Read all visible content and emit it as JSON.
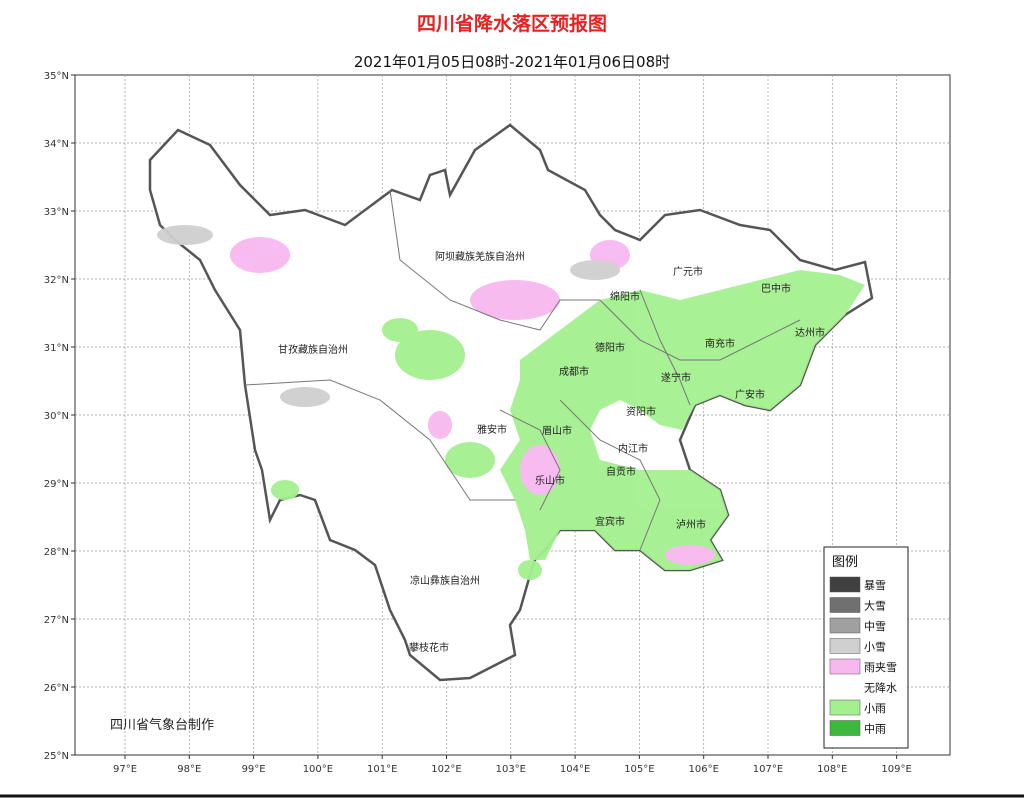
{
  "header": {
    "title": "四川省降水落区预报图",
    "subtitle": "2021年01月05日08时-2021年01月06日08时"
  },
  "axes": {
    "lat_ticks": [
      "35°N",
      "34°N",
      "33°N",
      "32°N",
      "31°N",
      "30°N",
      "29°N",
      "28°N",
      "27°N",
      "26°N",
      "25°N"
    ],
    "lon_ticks": [
      "97°E",
      "98°E",
      "99°E",
      "100°E",
      "101°E",
      "102°E",
      "103°E",
      "104°E",
      "105°E",
      "106°E",
      "107°E",
      "108°E",
      "109°E"
    ]
  },
  "cities": [
    "阿坝藏族羌族自治州",
    "广元市",
    "巴中市",
    "绵阳市",
    "达州市",
    "德阳市",
    "南充市",
    "甘孜藏族自治州",
    "成都市",
    "遂宁市",
    "广安市",
    "资阳市",
    "雅安市",
    "眉山市",
    "内江市",
    "自贡市",
    "乐山市",
    "宜宾市",
    "泸州市",
    "凉山彝族自治州",
    "攀枝花市"
  ],
  "legend": {
    "title": "图例",
    "items": [
      {
        "label": "暴雪",
        "color": "#404040"
      },
      {
        "label": "大雪",
        "color": "#707070"
      },
      {
        "label": "中雪",
        "color": "#a0a0a0"
      },
      {
        "label": "小雪",
        "color": "#d0d0d0"
      },
      {
        "label": "雨夹雪",
        "color": "#f7b8f0"
      },
      {
        "label": "无降水",
        "color": "#ffffff"
      },
      {
        "label": "小雨",
        "color": "#a3f08e"
      },
      {
        "label": "中雨",
        "color": "#3cb93c"
      }
    ]
  },
  "credit": "四川省气象台制作"
}
